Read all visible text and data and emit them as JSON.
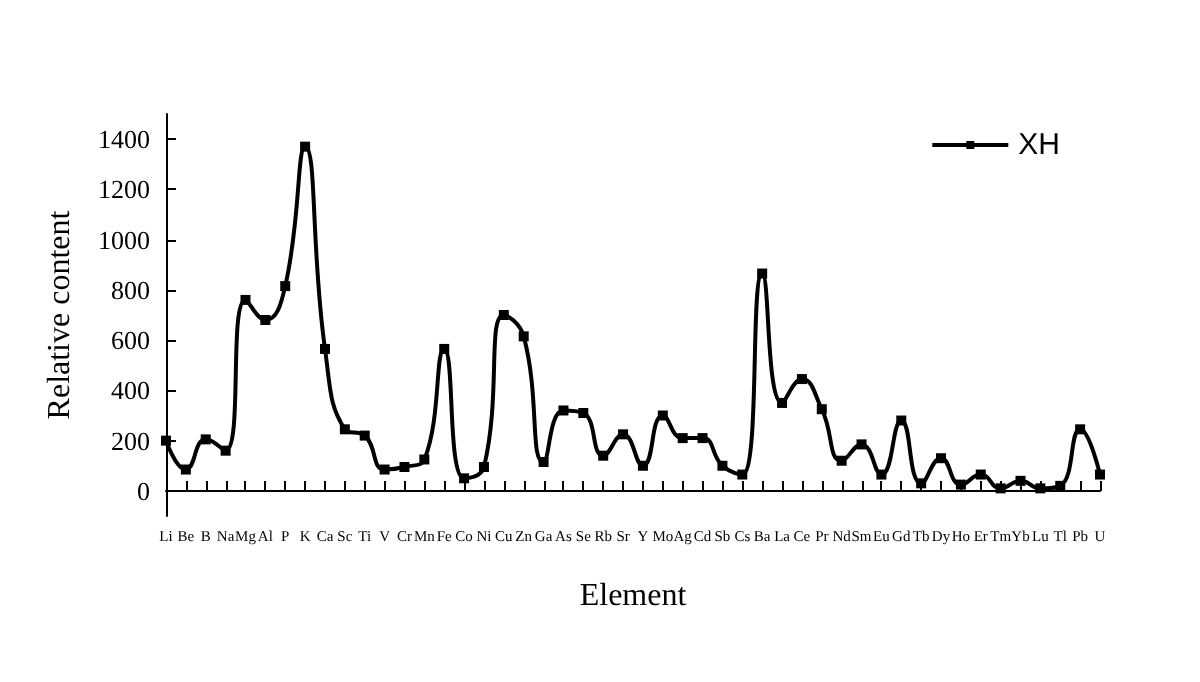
{
  "chart_data": {
    "type": "line",
    "xlabel": "Element",
    "ylabel": "Relative content",
    "categories": [
      "Li",
      "Be",
      "B",
      "Na",
      "Mg",
      "Al",
      "P",
      "K",
      "Ca",
      "Sc",
      "Ti",
      "V",
      "Cr",
      "Mn",
      "Fe",
      "Co",
      "Ni",
      "Cu",
      "Zn",
      "Ga",
      "As",
      "Se",
      "Rb",
      "Sr",
      "Y",
      "Mo",
      "Ag",
      "Cd",
      "Sb",
      "Cs",
      "Ba",
      "La",
      "Ce",
      "Pr",
      "Nd",
      "Sm",
      "Eu",
      "Gd",
      "Tb",
      "Dy",
      "Ho",
      "Er",
      "Tm",
      "Yb",
      "Lu",
      "Tl",
      "Pb",
      "U"
    ],
    "series": [
      {
        "name": "XH",
        "color": "#000000",
        "values": [
          200,
          85,
          205,
          160,
          760,
          680,
          815,
          1370,
          565,
          245,
          220,
          85,
          95,
          125,
          565,
          50,
          95,
          700,
          615,
          115,
          320,
          310,
          140,
          225,
          100,
          300,
          210,
          210,
          100,
          65,
          865,
          350,
          445,
          325,
          120,
          185,
          65,
          280,
          30,
          130,
          25,
          65,
          10,
          40,
          10,
          20,
          245,
          65
        ]
      }
    ],
    "ylim": [
      -100,
      1500
    ],
    "yticks": [
      0,
      200,
      400,
      600,
      800,
      1000,
      1200,
      1400
    ],
    "grid": false,
    "legend": "top right",
    "marker": "square",
    "line_style": "solid"
  }
}
